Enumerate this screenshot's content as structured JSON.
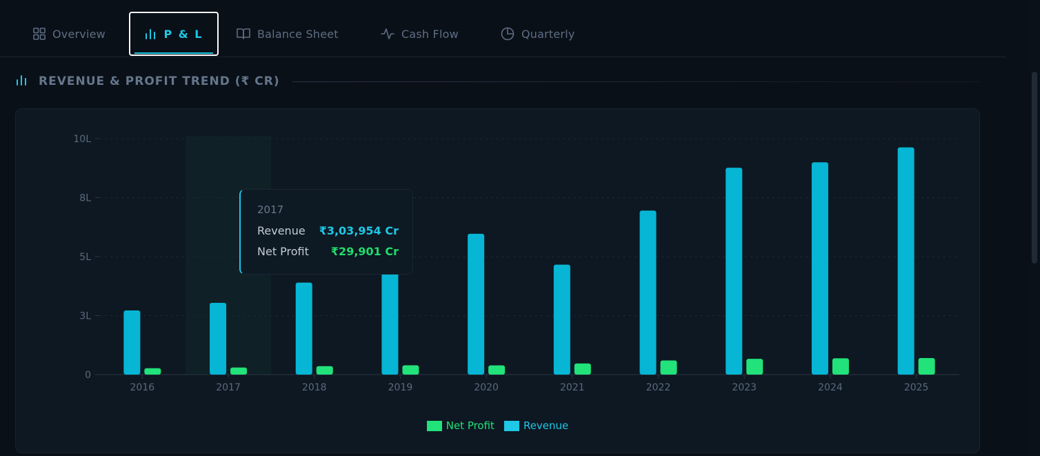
{
  "tabs": [
    {
      "label": "Overview",
      "icon": "grid-icon"
    },
    {
      "label": "P & L",
      "icon": "bar-chart-icon",
      "active": true
    },
    {
      "label": "Balance Sheet",
      "icon": "book-icon"
    },
    {
      "label": "Cash Flow",
      "icon": "pulse-icon"
    },
    {
      "label": "Quarterly",
      "icon": "pie-icon"
    }
  ],
  "section": {
    "title": "REVENUE & PROFIT TREND (₹ CR)",
    "icon": "bar-chart-icon"
  },
  "colors": {
    "revenue": "#06b6d4",
    "net_profit": "#22e27a",
    "accent": "#1ec8e6",
    "background": "#0a1018",
    "card": "#0e1822"
  },
  "tooltip": {
    "year": "2017",
    "revenue_label": "Revenue",
    "revenue_value": "₹3,03,954 Cr",
    "profit_label": "Net Profit",
    "profit_value": "₹29,901 Cr"
  },
  "legend": [
    {
      "label": "Net Profit",
      "color": "#22e27a"
    },
    {
      "label": "Revenue",
      "color": "#1ec8e6"
    }
  ],
  "chart_data": {
    "type": "bar",
    "title": "REVENUE & PROFIT TREND (₹ CR)",
    "categories": [
      "2016",
      "2017",
      "2018",
      "2019",
      "2020",
      "2021",
      "2022",
      "2023",
      "2024",
      "2025"
    ],
    "series": [
      {
        "name": "Revenue",
        "color": "#06b6d4",
        "values": [
          272000,
          303954,
          390000,
          430000,
          597000,
          466000,
          695000,
          877000,
          900000,
          963000
        ]
      },
      {
        "name": "Net Profit",
        "color": "#22e27a",
        "values": [
          27000,
          29901,
          36000,
          39500,
          39000,
          47000,
          60000,
          67000,
          69000,
          70000
        ]
      }
    ],
    "y_ticks": [
      {
        "value": 0,
        "label": "0"
      },
      {
        "value": 250000,
        "label": "3L"
      },
      {
        "value": 500000,
        "label": "5L"
      },
      {
        "value": 750000,
        "label": "8L"
      },
      {
        "value": 1000000,
        "label": "10L"
      }
    ],
    "ylim": [
      0,
      1000000
    ],
    "highlighted_category": "2017",
    "grid": true,
    "legend_position": "bottom"
  }
}
